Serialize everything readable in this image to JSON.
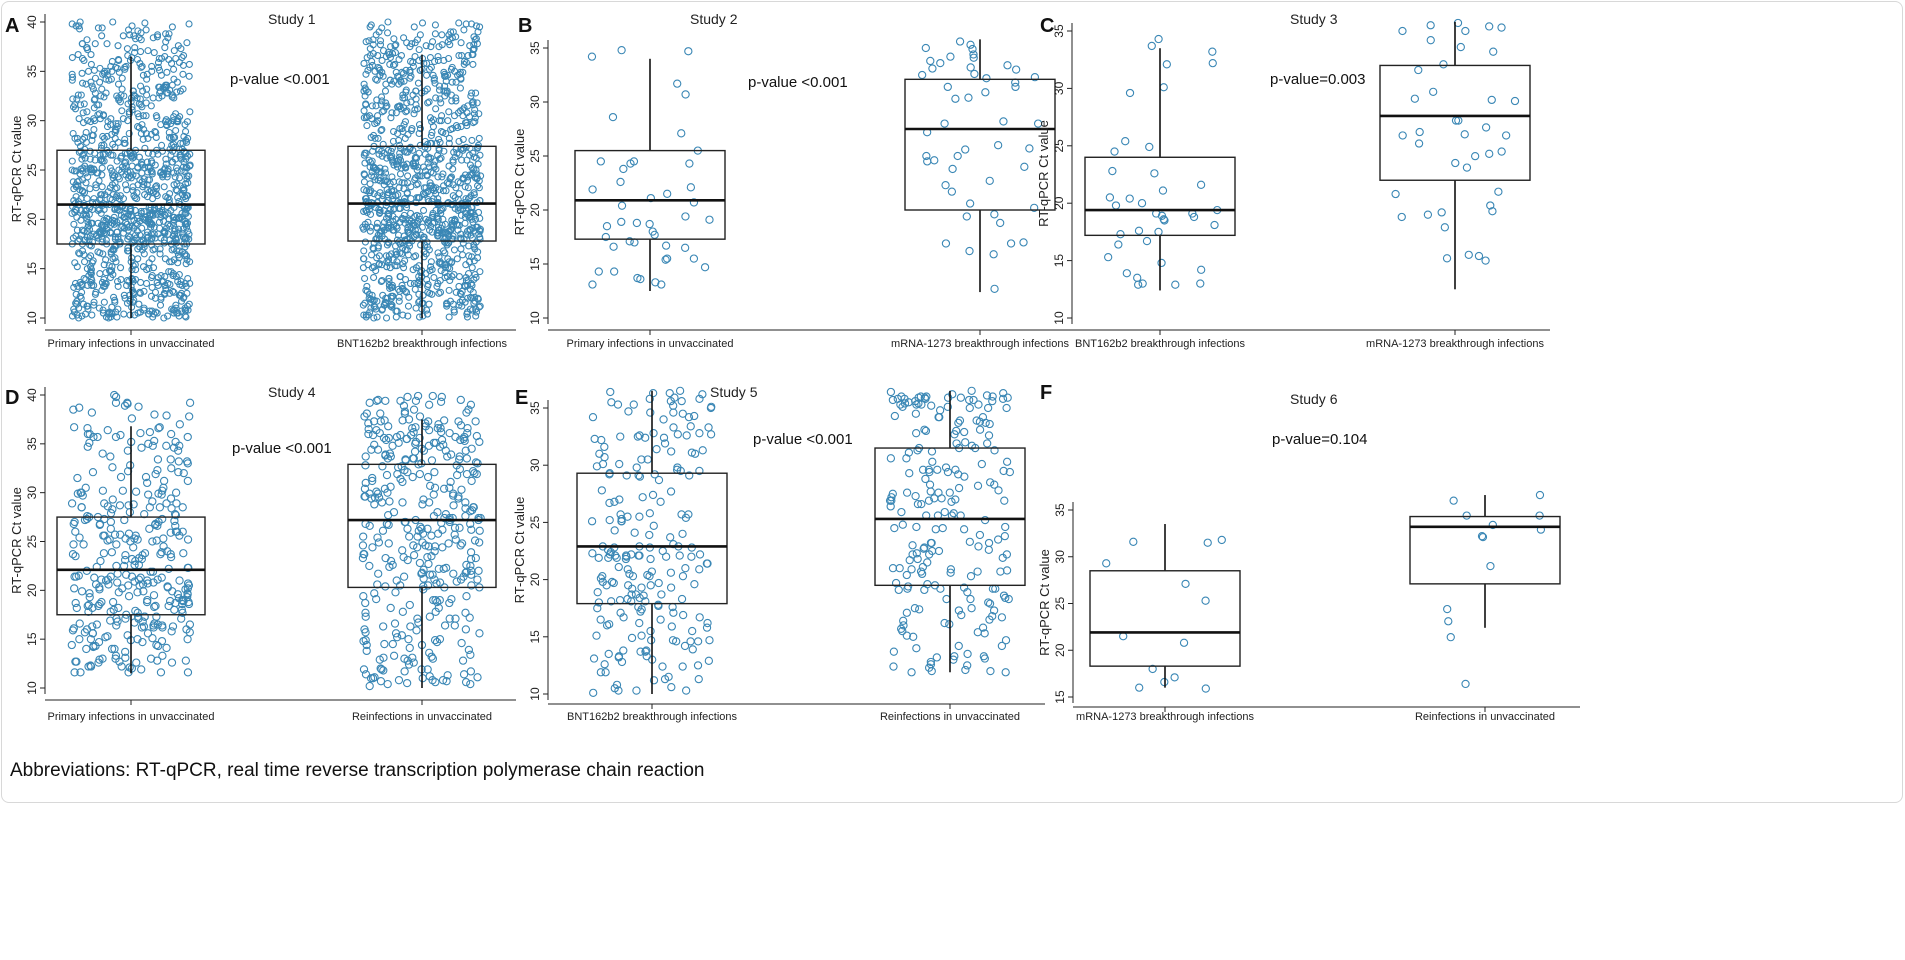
{
  "caption": "Abbreviations: RT-qPCR, real time reverse transcription polymerase chain reaction",
  "point_color": "#3a87b5",
  "chart_data": [
    {
      "panel": "A",
      "type": "box+jitter",
      "title": "Study 1",
      "ylabel": "RT-qPCR Ct value",
      "ylim": [
        10,
        40
      ],
      "yticks": [
        10,
        15,
        20,
        25,
        30,
        35,
        40
      ],
      "annotation": "p-value <0.001",
      "groups": [
        {
          "label": "Primary infections in unvaccinated",
          "whisker_low": 10,
          "q1": 17.5,
          "median": 21.5,
          "q3": 27,
          "whisker_high": 36.5
        },
        {
          "label": "BNT162b2 breakthrough infections",
          "whisker_low": 10,
          "q1": 17.8,
          "median": 21.6,
          "q3": 27.4,
          "whisker_high": 36.7
        }
      ]
    },
    {
      "panel": "B",
      "type": "box+jitter",
      "title": "Study 2",
      "ylabel": "RT-qPCR Ct value",
      "ylim": [
        10,
        35
      ],
      "yticks": [
        10,
        15,
        20,
        25,
        30,
        35
      ],
      "annotation": "p-value <0.001",
      "groups": [
        {
          "label": "Primary infections in unvaccinated",
          "whisker_low": 12.5,
          "q1": 17.3,
          "median": 20.9,
          "q3": 25.5,
          "whisker_high": 34
        },
        {
          "label": "mRNA-1273 breakthrough infections",
          "whisker_low": 12.4,
          "q1": 20,
          "median": 27.5,
          "q3": 32.1,
          "whisker_high": 35.8
        }
      ]
    },
    {
      "panel": "C",
      "type": "box+jitter",
      "title": "Study 3",
      "ylabel": "RT-qPCR Ct value",
      "ylim": [
        10,
        35
      ],
      "yticks": [
        10,
        15,
        20,
        25,
        30,
        35
      ],
      "annotation": "p-value=0.003",
      "groups": [
        {
          "label": "BNT162b2 breakthrough infections",
          "whisker_low": 12.4,
          "q1": 17.2,
          "median": 19.4,
          "q3": 24,
          "whisker_high": 33.5
        },
        {
          "label": "mRNA-1273 breakthrough infections",
          "whisker_low": 12.5,
          "q1": 22,
          "median": 27.6,
          "q3": 32,
          "whisker_high": 35.8
        }
      ]
    },
    {
      "panel": "D",
      "type": "box+jitter",
      "title": "Study 4",
      "ylabel": "RT-qPCR Ct value",
      "ylim": [
        10,
        40
      ],
      "yticks": [
        10,
        15,
        20,
        25,
        30,
        35,
        40
      ],
      "annotation": "p-value <0.001",
      "groups": [
        {
          "label": "Primary infections in unvaccinated",
          "whisker_low": 11.5,
          "q1": 17.5,
          "median": 22.1,
          "q3": 27.5,
          "whisker_high": 36.8
        },
        {
          "label": "Reinfections in unvaccinated",
          "whisker_low": 10,
          "q1": 20.3,
          "median": 27.2,
          "q3": 32.9,
          "whisker_high": 37.5
        }
      ]
    },
    {
      "panel": "E",
      "type": "box+jitter",
      "title": "Study 5",
      "ylabel": "RT-qPCR Ct value",
      "ylim": [
        10,
        35
      ],
      "yticks": [
        10,
        15,
        20,
        25,
        30,
        35
      ],
      "annotation": "p-value <0.001",
      "groups": [
        {
          "label": "BNT162b2 breakthrough infections",
          "whisker_low": 10,
          "q1": 17.9,
          "median": 22.9,
          "q3": 29.3,
          "whisker_high": 36.5
        },
        {
          "label": "Reinfections in unvaccinated",
          "whisker_low": 11.9,
          "q1": 19.5,
          "median": 25.3,
          "q3": 31.5,
          "whisker_high": 36.5
        }
      ]
    },
    {
      "panel": "F",
      "type": "box+jitter",
      "title": "Study 6",
      "ylabel": "RT-qPCR Ct value",
      "ylim": [
        15,
        35
      ],
      "yticks": [
        15,
        20,
        25,
        30,
        35
      ],
      "annotation": "p-value=0.104",
      "groups": [
        {
          "label": "mRNA-1273 breakthrough infections",
          "whisker_low": 16,
          "q1": 18.3,
          "median": 21.9,
          "q3": 28.5,
          "whisker_high": 33.5,
          "points": [
            31.6,
            29.3,
            27.1,
            25.3,
            21.5,
            20.8,
            17.1,
            16.0,
            15.9,
            16.6,
            18.0,
            31.8,
            31.5
          ]
        },
        {
          "label": "Reinfections in unvaccinated",
          "whisker_low": 22.4,
          "q1": 27.1,
          "median": 33.2,
          "q3": 34.3,
          "whisker_high": 36.6,
          "points": [
            36.0,
            34.4,
            33.4,
            32.9,
            34.4,
            36.6,
            32.2,
            32.1,
            29.0,
            24.4,
            23.1,
            21.4,
            16.4
          ]
        }
      ]
    }
  ]
}
